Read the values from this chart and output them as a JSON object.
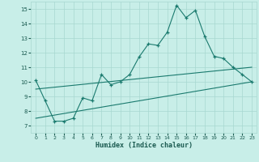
{
  "xlabel": "Humidex (Indice chaleur)",
  "x": [
    0,
    1,
    2,
    3,
    4,
    5,
    6,
    7,
    8,
    9,
    10,
    11,
    12,
    13,
    14,
    15,
    16,
    17,
    18,
    19,
    20,
    21,
    22,
    23
  ],
  "y_main": [
    10.1,
    8.7,
    7.3,
    7.3,
    7.5,
    8.9,
    8.7,
    10.5,
    9.8,
    10.0,
    10.5,
    11.7,
    12.6,
    12.5,
    13.4,
    15.25,
    14.4,
    14.9,
    13.1,
    11.75,
    11.6,
    11.0,
    10.5,
    10.0
  ],
  "y_line1": [
    9.5,
    9.565,
    9.63,
    9.695,
    9.76,
    9.826,
    9.891,
    9.957,
    10.022,
    10.087,
    10.152,
    10.217,
    10.283,
    10.348,
    10.413,
    10.478,
    10.543,
    10.609,
    10.674,
    10.739,
    10.804,
    10.87,
    10.935,
    11.0
  ],
  "y_line2": [
    7.5,
    7.609,
    7.717,
    7.826,
    7.935,
    8.043,
    8.152,
    8.261,
    8.37,
    8.478,
    8.587,
    8.696,
    8.804,
    8.913,
    9.022,
    9.13,
    9.239,
    9.348,
    9.457,
    9.565,
    9.674,
    9.783,
    9.891,
    10.0
  ],
  "color_main": "#1a7a6e",
  "color_lines": "#1a7a6e",
  "bg_color": "#c8eee8",
  "grid_color": "#a8d8d0",
  "text_color": "#1a5a50",
  "ylim": [
    6.5,
    15.5
  ],
  "xlim": [
    -0.5,
    23.5
  ],
  "yticks": [
    7,
    8,
    9,
    10,
    11,
    12,
    13,
    14,
    15
  ],
  "xticks": [
    0,
    1,
    2,
    3,
    4,
    5,
    6,
    7,
    8,
    9,
    10,
    11,
    12,
    13,
    14,
    15,
    16,
    17,
    18,
    19,
    20,
    21,
    22,
    23
  ]
}
